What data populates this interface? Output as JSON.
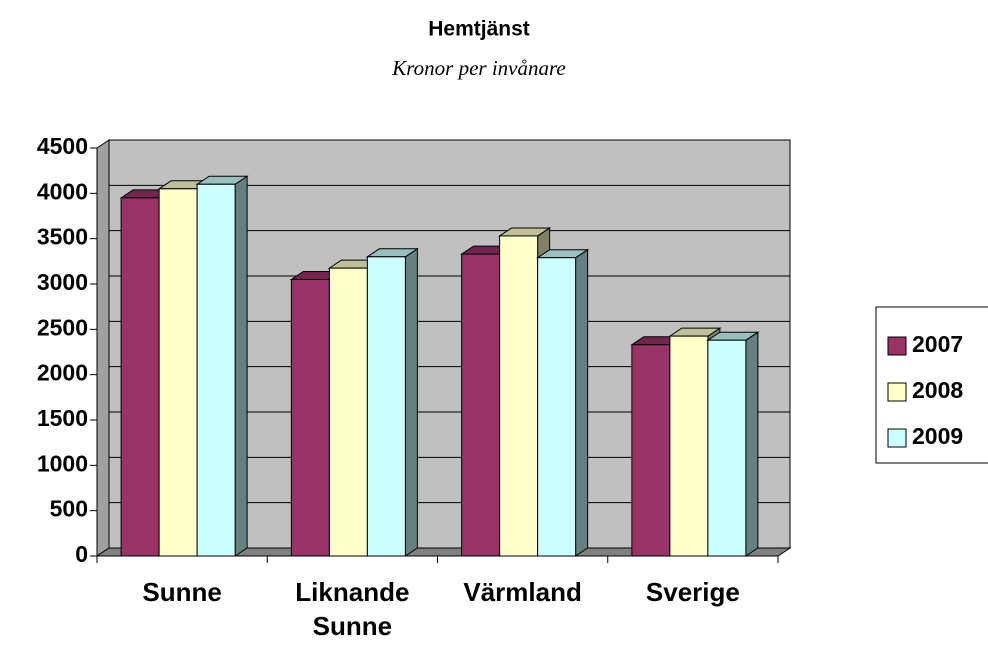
{
  "chart_data": {
    "type": "bar3d",
    "title": "Hemtjänst",
    "subtitle": "Kronor per invånare",
    "categories": [
      "Sunne",
      "Liknande Sunne",
      "Värmland",
      "Sverige"
    ],
    "series": [
      {
        "name": "2007",
        "color": "#993366",
        "values": [
          3950,
          3050,
          3330,
          2330
        ]
      },
      {
        "name": "2008",
        "color": "#ffffcc",
        "values": [
          4050,
          3175,
          3530,
          2425
        ]
      },
      {
        "name": "2009",
        "color": "#ccffff",
        "values": [
          4100,
          3300,
          3290,
          2380
        ]
      }
    ],
    "ylim": [
      0,
      4500
    ],
    "yticks": [
      0,
      500,
      1000,
      1500,
      2000,
      2500,
      3000,
      3500,
      4000,
      4500
    ],
    "grid": true,
    "legend": "right"
  }
}
